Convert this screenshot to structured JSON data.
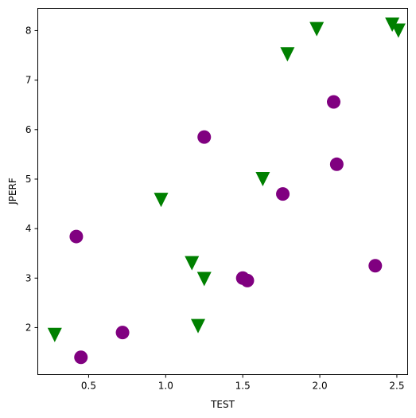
{
  "chart_data": {
    "type": "scatter",
    "title": "",
    "xlabel": "TEST",
    "ylabel": "JPERF",
    "xlim": [
      0.17,
      2.57
    ],
    "ylim": [
      1.05,
      8.45
    ],
    "xticks": [
      0.5,
      1.0,
      1.5,
      2.0,
      2.5
    ],
    "xtick_labels": [
      "0.5",
      "1.0",
      "1.5",
      "2.0",
      "2.5"
    ],
    "yticks": [
      2,
      3,
      4,
      5,
      6,
      7,
      8
    ],
    "ytick_labels": [
      "2",
      "3",
      "4",
      "5",
      "6",
      "7",
      "8"
    ],
    "grid": false,
    "series": [
      {
        "marker": "circle",
        "color": "#800080",
        "points": [
          {
            "x": 0.45,
            "y": 1.4
          },
          {
            "x": 0.72,
            "y": 1.9
          },
          {
            "x": 0.42,
            "y": 3.84
          },
          {
            "x": 1.25,
            "y": 5.85
          },
          {
            "x": 1.5,
            "y": 3.0
          },
          {
            "x": 1.53,
            "y": 2.95
          },
          {
            "x": 1.76,
            "y": 4.7
          },
          {
            "x": 2.09,
            "y": 6.56
          },
          {
            "x": 2.11,
            "y": 5.3
          },
          {
            "x": 2.36,
            "y": 3.25
          }
        ]
      },
      {
        "marker": "triangle-down",
        "color": "#008000",
        "points": [
          {
            "x": 0.28,
            "y": 1.85
          },
          {
            "x": 0.97,
            "y": 4.58
          },
          {
            "x": 1.17,
            "y": 3.3
          },
          {
            "x": 1.21,
            "y": 2.03
          },
          {
            "x": 1.25,
            "y": 2.98
          },
          {
            "x": 1.63,
            "y": 5.0
          },
          {
            "x": 1.79,
            "y": 7.52
          },
          {
            "x": 1.98,
            "y": 8.03
          },
          {
            "x": 2.47,
            "y": 8.12
          },
          {
            "x": 2.51,
            "y": 8.0
          }
        ]
      }
    ]
  }
}
